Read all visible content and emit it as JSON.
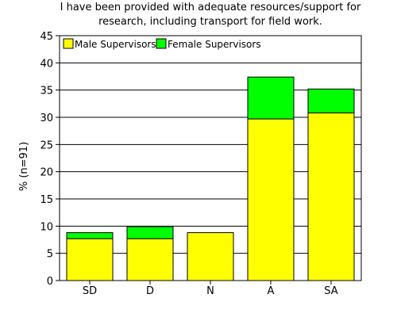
{
  "chart_data": {
    "type": "bar",
    "stacked": true,
    "title_lines": [
      "I have been provided with adequate resources/support for",
      "research, including transport for field work."
    ],
    "xlabel": "",
    "ylabel": "% (n=91)",
    "categories": [
      "SD",
      "D",
      "N",
      "A",
      "SA"
    ],
    "ylim": [
      0,
      45
    ],
    "yticks": [
      0,
      5,
      10,
      15,
      20,
      25,
      30,
      35,
      40,
      45
    ],
    "grid": true,
    "legend_position": "top-left",
    "series": [
      {
        "name": "Male Supervisors",
        "color": "#ffff00",
        "values": [
          7.7,
          7.7,
          8.8,
          29.7,
          30.8
        ]
      },
      {
        "name": "Female Supervisors",
        "color": "#00ff00",
        "values": [
          1.1,
          2.2,
          0,
          7.7,
          4.4
        ]
      }
    ]
  }
}
